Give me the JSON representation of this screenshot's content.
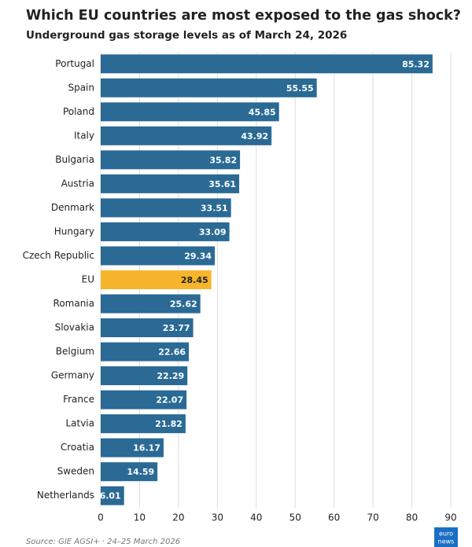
{
  "chart_data": {
    "type": "hbar",
    "title": "Which EU countries are most exposed to the gas shock?",
    "subtitle": "Underground gas storage levels as of March 24, 2026",
    "categories": [
      "Portugal",
      "Spain",
      "Poland",
      "Italy",
      "Bulgaria",
      "Austria",
      "Denmark",
      "Hungary",
      "Czech Republic",
      "EU",
      "Romania",
      "Slovakia",
      "Belgium",
      "Germany",
      "France",
      "Latvia",
      "Croatia",
      "Sweden",
      "Netherlands"
    ],
    "values": [
      85.32,
      55.55,
      45.85,
      43.92,
      35.82,
      35.61,
      33.51,
      33.09,
      29.34,
      28.45,
      25.62,
      23.77,
      22.66,
      22.29,
      22.07,
      21.82,
      16.17,
      14.59,
      6.01
    ],
    "colors": [
      "#2a6a94",
      "#2a6a94",
      "#2a6a94",
      "#2a6a94",
      "#2a6a94",
      "#2a6a94",
      "#2a6a94",
      "#2a6a94",
      "#2a6a94",
      "#f7b52d",
      "#2a6a94",
      "#2a6a94",
      "#2a6a94",
      "#2a6a94",
      "#2a6a94",
      "#2a6a94",
      "#2a6a94",
      "#2a6a94",
      "#2a6a94"
    ],
    "xlim": [
      0,
      90
    ],
    "xticks": [
      0,
      10,
      20,
      30,
      40,
      50,
      60,
      70,
      80,
      90
    ],
    "grid": true,
    "source": "Source: GIE AGSI+ · 24–25 March 2026",
    "logo": [
      "euro",
      "news"
    ]
  }
}
